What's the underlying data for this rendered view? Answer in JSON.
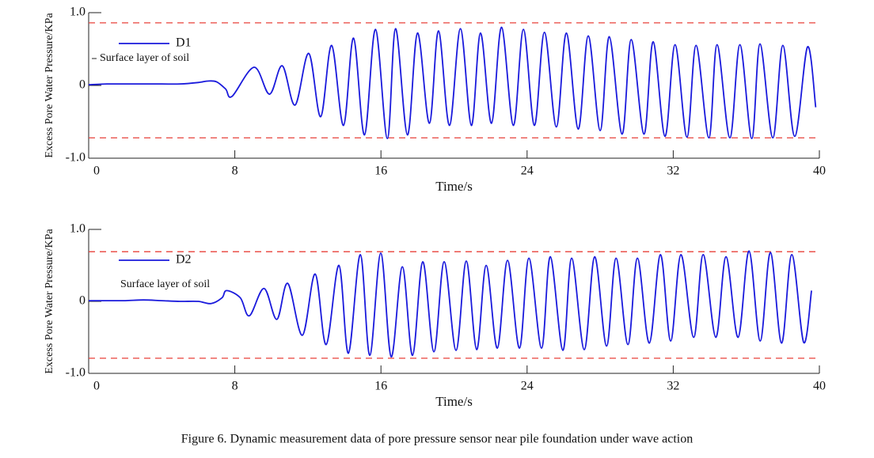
{
  "chart_data": [
    {
      "type": "line",
      "x_label": "Time/s",
      "y_label": "Excess Pore Water Pressure/KPa",
      "annotation": "Surface layer of soil",
      "xlim": [
        0,
        40
      ],
      "xticks": [
        0,
        8,
        16,
        24,
        32,
        40
      ],
      "ylim": [
        -1,
        1
      ],
      "yticks": [
        {
          "value": 1,
          "label": "1.0"
        },
        0,
        {
          "value": -1,
          "label": "-1.0"
        }
      ],
      "hlines": [
        0.86,
        -0.72
      ],
      "hline_color": "#e8403a",
      "grid": false,
      "x": [
        0,
        1,
        2,
        3,
        4,
        5,
        6,
        6.5,
        7,
        7.5,
        7.85,
        9.06,
        9.9,
        10.6,
        11.3,
        12.05,
        12.7,
        13.3,
        13.95,
        14.5,
        15.1,
        15.7,
        16.35,
        16.8,
        17.45,
        18.0,
        18.65,
        19.15,
        19.75,
        20.35,
        20.95,
        21.45,
        22.05,
        22.6,
        23.25,
        23.8,
        24.4,
        24.95,
        25.6,
        26.15,
        26.8,
        27.35,
        28.0,
        28.5,
        29.2,
        29.7,
        30.4,
        30.9,
        31.55,
        32.1,
        32.75,
        33.25,
        33.95,
        34.4,
        35.1,
        35.65,
        36.3,
        36.75,
        37.45,
        38.0,
        38.65,
        39.35,
        39.8
      ],
      "series": [
        {
          "name": "D1",
          "color": "#1a1adc",
          "values": [
            0.01,
            0.02,
            0.02,
            0.02,
            0.02,
            0.02,
            0.04,
            0.06,
            0.05,
            -0.05,
            -0.15,
            0.25,
            -0.12,
            0.27,
            -0.27,
            0.44,
            -0.43,
            0.55,
            -0.55,
            0.65,
            -0.68,
            0.77,
            -0.73,
            0.78,
            -0.68,
            0.72,
            -0.52,
            0.75,
            -0.55,
            0.78,
            -0.55,
            0.72,
            -0.52,
            0.8,
            -0.55,
            0.77,
            -0.55,
            0.73,
            -0.57,
            0.72,
            -0.6,
            0.68,
            -0.62,
            0.67,
            -0.67,
            0.63,
            -0.67,
            0.6,
            -0.7,
            0.56,
            -0.71,
            0.55,
            -0.72,
            0.56,
            -0.72,
            0.56,
            -0.73,
            0.57,
            -0.72,
            0.55,
            -0.7,
            0.53,
            -0.3
          ]
        }
      ]
    },
    {
      "type": "line",
      "x_label": "Time/s",
      "y_label": "Excess Pore Water Pressure/KPa",
      "annotation": "Surface layer of soil",
      "xlim": [
        0,
        40
      ],
      "xticks": [
        0,
        8,
        16,
        24,
        32,
        40
      ],
      "ylim": [
        -1,
        1
      ],
      "yticks": [
        {
          "value": 1,
          "label": "1.0"
        },
        0,
        {
          "value": -1,
          "label": "-1.0"
        }
      ],
      "hlines": [
        0.69,
        -0.79
      ],
      "hline_color": "#e8403a",
      "grid": false,
      "x": [
        0,
        1,
        2,
        3,
        4,
        5,
        6,
        6.7,
        7.3,
        7.55,
        8.3,
        8.8,
        9.6,
        10.3,
        10.9,
        11.7,
        12.4,
        13.0,
        13.7,
        14.22,
        14.87,
        15.39,
        15.99,
        16.56,
        17.17,
        17.73,
        18.29,
        18.9,
        19.46,
        20.11,
        20.67,
        21.24,
        21.76,
        22.37,
        22.93,
        23.58,
        24.1,
        24.79,
        25.27,
        25.96,
        26.44,
        27.13,
        27.7,
        28.35,
        28.87,
        29.52,
        30.04,
        30.69,
        31.3,
        31.86,
        32.42,
        33.12,
        33.64,
        34.33,
        34.89,
        35.55,
        36.15,
        36.76,
        37.32,
        37.93,
        38.49,
        39.14,
        39.57
      ],
      "series": [
        {
          "name": "D2",
          "color": "#1a1adc",
          "values": [
            0.01,
            0.01,
            0.01,
            0.02,
            0.01,
            0.0,
            0.0,
            -0.03,
            0.05,
            0.15,
            0.05,
            -0.2,
            0.18,
            -0.25,
            0.25,
            -0.47,
            0.38,
            -0.6,
            0.5,
            -0.72,
            0.65,
            -0.75,
            0.67,
            -0.77,
            0.48,
            -0.75,
            0.55,
            -0.7,
            0.55,
            -0.68,
            0.56,
            -0.67,
            0.5,
            -0.65,
            0.57,
            -0.65,
            0.6,
            -0.65,
            0.62,
            -0.68,
            0.6,
            -0.67,
            0.62,
            -0.62,
            0.6,
            -0.6,
            0.6,
            -0.58,
            0.65,
            -0.55,
            0.65,
            -0.5,
            0.65,
            -0.5,
            0.62,
            -0.5,
            0.7,
            -0.55,
            0.68,
            -0.58,
            0.65,
            -0.57,
            0.15
          ]
        }
      ]
    }
  ],
  "caption": "Figure 6. Dynamic measurement data of pore pressure sensor near pile foundation under wave action"
}
